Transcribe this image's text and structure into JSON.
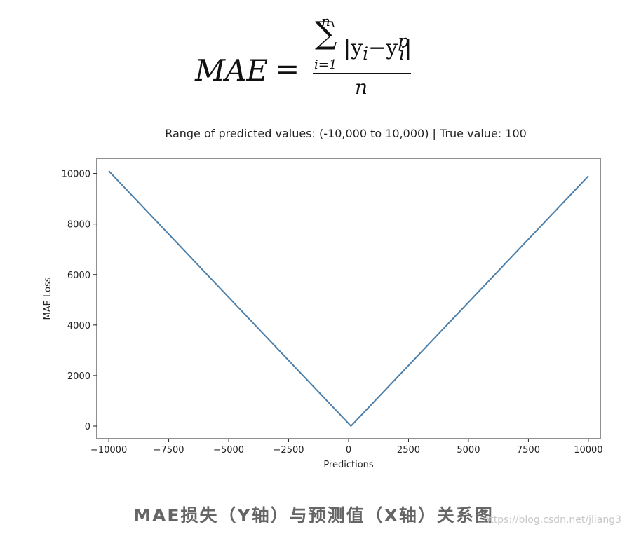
{
  "formula": {
    "lhs": "MAE",
    "equals": "=",
    "sum_upper": "n",
    "sum_symbol": "∑",
    "sum_lower": "i=1",
    "numerator_open": "|y",
    "numerator_sub_i": "i",
    "numerator_minus": "−y",
    "numerator_sub_p": "i",
    "numerator_sup_p": "p",
    "numerator_close": "|",
    "denominator": "n"
  },
  "chart_data": {
    "type": "line",
    "title": "Range of predicted values: (-10,000 to 10,000) | True value: 100",
    "xlabel": "Predictions",
    "ylabel": "MAE Loss",
    "xlim": [
      -10500,
      10500
    ],
    "ylim": [
      -500,
      10600
    ],
    "xticks": [
      -10000,
      -7500,
      -5000,
      -2500,
      0,
      2500,
      5000,
      7500,
      10000
    ],
    "xtick_labels": [
      "−10000",
      "−7500",
      "−5000",
      "−2500",
      "0",
      "2500",
      "5000",
      "7500",
      "10000"
    ],
    "yticks": [
      0,
      2000,
      4000,
      6000,
      8000,
      10000
    ],
    "ytick_labels": [
      "0",
      "2000",
      "4000",
      "6000",
      "8000",
      "10000"
    ],
    "grid": false,
    "series": [
      {
        "x": [
          -10000,
          100,
          10000
        ],
        "y": [
          10100,
          0,
          9900
        ],
        "color": "#4a7ea8"
      }
    ]
  },
  "caption": "MAE损失（Y轴）与预测值（X轴）关系图",
  "watermark": "https://blog.csdn.net/jliang3"
}
